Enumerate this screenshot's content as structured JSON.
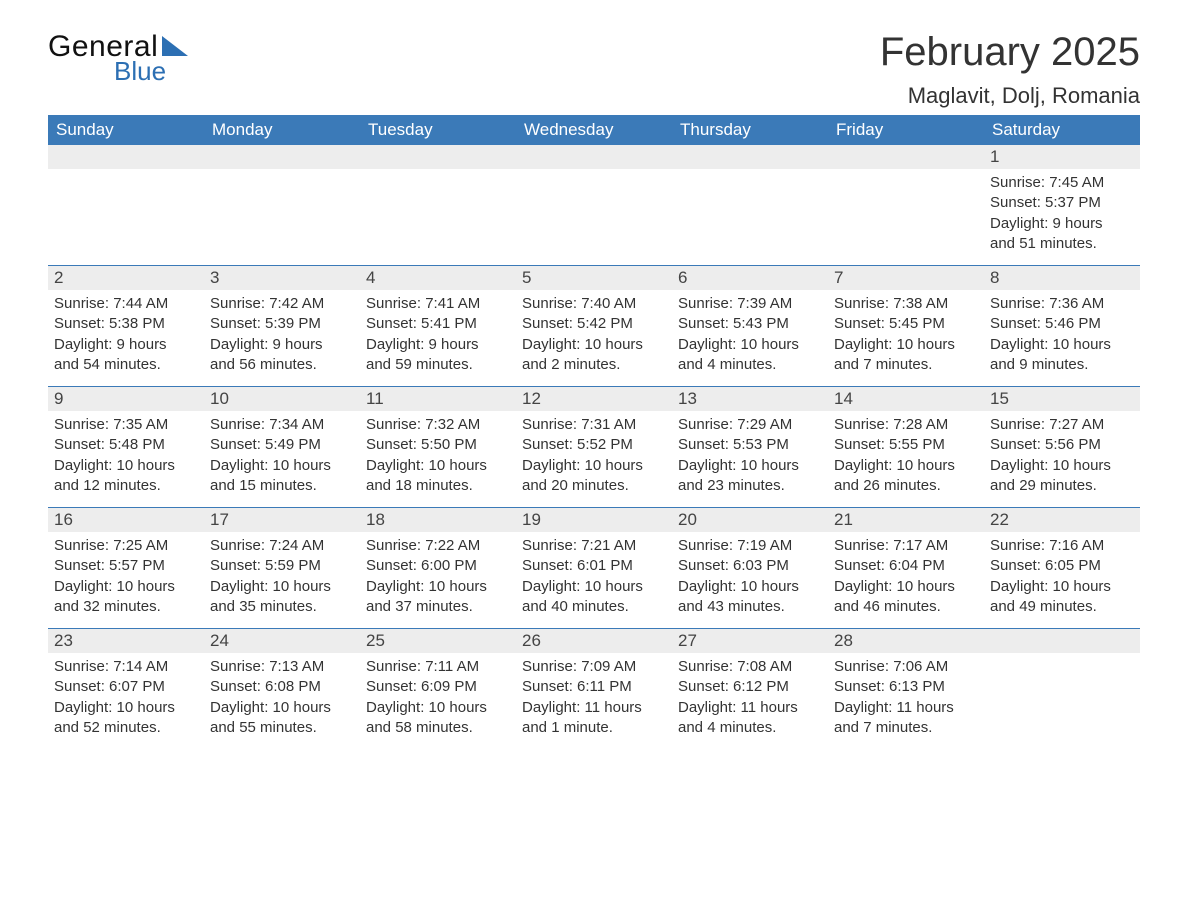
{
  "logo": {
    "word1": "General",
    "word2": "Blue",
    "triangle_color": "#2c6fb3"
  },
  "title": "February 2025",
  "location": "Maglavit, Dolj, Romania",
  "colors": {
    "header_bg": "#3b7ab8",
    "header_text": "#ffffff",
    "daynum_bg": "#ededed",
    "row_border": "#3b7ab8",
    "text": "#333333",
    "background": "#ffffff",
    "logo_blue": "#2c6fb3"
  },
  "typography": {
    "title_fontsize": 40,
    "location_fontsize": 22,
    "dayheader_fontsize": 17,
    "body_fontsize": 15
  },
  "dayheaders": [
    "Sunday",
    "Monday",
    "Tuesday",
    "Wednesday",
    "Thursday",
    "Friday",
    "Saturday"
  ],
  "weeks": [
    [
      null,
      null,
      null,
      null,
      null,
      null,
      {
        "n": "1",
        "sunrise": "Sunrise: 7:45 AM",
        "sunset": "Sunset: 5:37 PM",
        "dl1": "Daylight: 9 hours",
        "dl2": "and 51 minutes."
      }
    ],
    [
      {
        "n": "2",
        "sunrise": "Sunrise: 7:44 AM",
        "sunset": "Sunset: 5:38 PM",
        "dl1": "Daylight: 9 hours",
        "dl2": "and 54 minutes."
      },
      {
        "n": "3",
        "sunrise": "Sunrise: 7:42 AM",
        "sunset": "Sunset: 5:39 PM",
        "dl1": "Daylight: 9 hours",
        "dl2": "and 56 minutes."
      },
      {
        "n": "4",
        "sunrise": "Sunrise: 7:41 AM",
        "sunset": "Sunset: 5:41 PM",
        "dl1": "Daylight: 9 hours",
        "dl2": "and 59 minutes."
      },
      {
        "n": "5",
        "sunrise": "Sunrise: 7:40 AM",
        "sunset": "Sunset: 5:42 PM",
        "dl1": "Daylight: 10 hours",
        "dl2": "and 2 minutes."
      },
      {
        "n": "6",
        "sunrise": "Sunrise: 7:39 AM",
        "sunset": "Sunset: 5:43 PM",
        "dl1": "Daylight: 10 hours",
        "dl2": "and 4 minutes."
      },
      {
        "n": "7",
        "sunrise": "Sunrise: 7:38 AM",
        "sunset": "Sunset: 5:45 PM",
        "dl1": "Daylight: 10 hours",
        "dl2": "and 7 minutes."
      },
      {
        "n": "8",
        "sunrise": "Sunrise: 7:36 AM",
        "sunset": "Sunset: 5:46 PM",
        "dl1": "Daylight: 10 hours",
        "dl2": "and 9 minutes."
      }
    ],
    [
      {
        "n": "9",
        "sunrise": "Sunrise: 7:35 AM",
        "sunset": "Sunset: 5:48 PM",
        "dl1": "Daylight: 10 hours",
        "dl2": "and 12 minutes."
      },
      {
        "n": "10",
        "sunrise": "Sunrise: 7:34 AM",
        "sunset": "Sunset: 5:49 PM",
        "dl1": "Daylight: 10 hours",
        "dl2": "and 15 minutes."
      },
      {
        "n": "11",
        "sunrise": "Sunrise: 7:32 AM",
        "sunset": "Sunset: 5:50 PM",
        "dl1": "Daylight: 10 hours",
        "dl2": "and 18 minutes."
      },
      {
        "n": "12",
        "sunrise": "Sunrise: 7:31 AM",
        "sunset": "Sunset: 5:52 PM",
        "dl1": "Daylight: 10 hours",
        "dl2": "and 20 minutes."
      },
      {
        "n": "13",
        "sunrise": "Sunrise: 7:29 AM",
        "sunset": "Sunset: 5:53 PM",
        "dl1": "Daylight: 10 hours",
        "dl2": "and 23 minutes."
      },
      {
        "n": "14",
        "sunrise": "Sunrise: 7:28 AM",
        "sunset": "Sunset: 5:55 PM",
        "dl1": "Daylight: 10 hours",
        "dl2": "and 26 minutes."
      },
      {
        "n": "15",
        "sunrise": "Sunrise: 7:27 AM",
        "sunset": "Sunset: 5:56 PM",
        "dl1": "Daylight: 10 hours",
        "dl2": "and 29 minutes."
      }
    ],
    [
      {
        "n": "16",
        "sunrise": "Sunrise: 7:25 AM",
        "sunset": "Sunset: 5:57 PM",
        "dl1": "Daylight: 10 hours",
        "dl2": "and 32 minutes."
      },
      {
        "n": "17",
        "sunrise": "Sunrise: 7:24 AM",
        "sunset": "Sunset: 5:59 PM",
        "dl1": "Daylight: 10 hours",
        "dl2": "and 35 minutes."
      },
      {
        "n": "18",
        "sunrise": "Sunrise: 7:22 AM",
        "sunset": "Sunset: 6:00 PM",
        "dl1": "Daylight: 10 hours",
        "dl2": "and 37 minutes."
      },
      {
        "n": "19",
        "sunrise": "Sunrise: 7:21 AM",
        "sunset": "Sunset: 6:01 PM",
        "dl1": "Daylight: 10 hours",
        "dl2": "and 40 minutes."
      },
      {
        "n": "20",
        "sunrise": "Sunrise: 7:19 AM",
        "sunset": "Sunset: 6:03 PM",
        "dl1": "Daylight: 10 hours",
        "dl2": "and 43 minutes."
      },
      {
        "n": "21",
        "sunrise": "Sunrise: 7:17 AM",
        "sunset": "Sunset: 6:04 PM",
        "dl1": "Daylight: 10 hours",
        "dl2": "and 46 minutes."
      },
      {
        "n": "22",
        "sunrise": "Sunrise: 7:16 AM",
        "sunset": "Sunset: 6:05 PM",
        "dl1": "Daylight: 10 hours",
        "dl2": "and 49 minutes."
      }
    ],
    [
      {
        "n": "23",
        "sunrise": "Sunrise: 7:14 AM",
        "sunset": "Sunset: 6:07 PM",
        "dl1": "Daylight: 10 hours",
        "dl2": "and 52 minutes."
      },
      {
        "n": "24",
        "sunrise": "Sunrise: 7:13 AM",
        "sunset": "Sunset: 6:08 PM",
        "dl1": "Daylight: 10 hours",
        "dl2": "and 55 minutes."
      },
      {
        "n": "25",
        "sunrise": "Sunrise: 7:11 AM",
        "sunset": "Sunset: 6:09 PM",
        "dl1": "Daylight: 10 hours",
        "dl2": "and 58 minutes."
      },
      {
        "n": "26",
        "sunrise": "Sunrise: 7:09 AM",
        "sunset": "Sunset: 6:11 PM",
        "dl1": "Daylight: 11 hours",
        "dl2": "and 1 minute."
      },
      {
        "n": "27",
        "sunrise": "Sunrise: 7:08 AM",
        "sunset": "Sunset: 6:12 PM",
        "dl1": "Daylight: 11 hours",
        "dl2": "and 4 minutes."
      },
      {
        "n": "28",
        "sunrise": "Sunrise: 7:06 AM",
        "sunset": "Sunset: 6:13 PM",
        "dl1": "Daylight: 11 hours",
        "dl2": "and 7 minutes."
      },
      null
    ]
  ]
}
